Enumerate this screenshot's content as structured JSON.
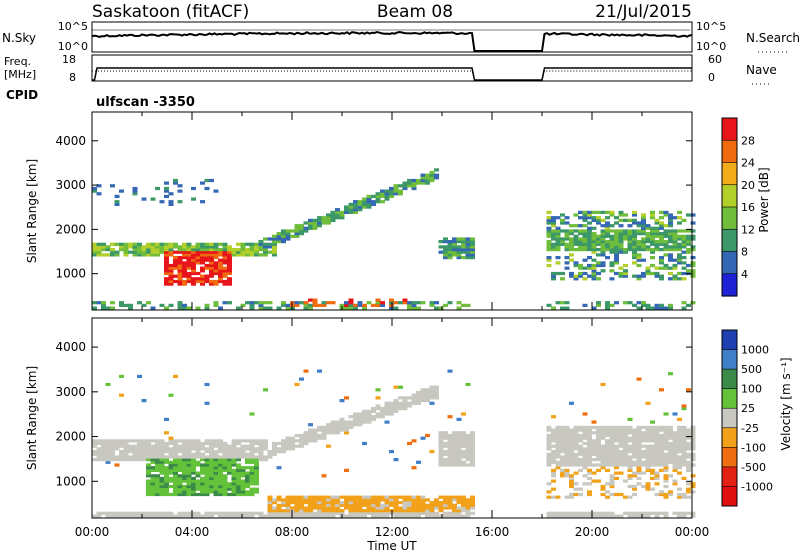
{
  "header": {
    "station": "Saskatoon (fitACF)",
    "beam": "Beam 08",
    "date": "21/Jul/2015"
  },
  "top_panels": {
    "nsky_label": "N.Sky",
    "nsky_ticks": [
      "10^5",
      "10^0"
    ],
    "nsearch_label": "N.Search",
    "nsearch_ticks": [
      "10^5",
      "10^0"
    ],
    "freq_label": "Freq.",
    "freq_unit": "[MHz]",
    "freq_ticks": [
      "18",
      "8"
    ],
    "nave_label": "Nave",
    "nave_ticks": [
      "60",
      "0"
    ],
    "cpid_label": "CPID",
    "cpid_value": "ulfscan -3350"
  },
  "chart_data": [
    {
      "type": "heatmap",
      "panel": "power",
      "ylabel": "Slant Range [km]",
      "yticks": [
        "4000",
        "3000",
        "2000",
        "1000"
      ],
      "ylim": [
        180,
        4650
      ],
      "xlim_hours": [
        0,
        24
      ],
      "data_gap_hours": [
        15.2,
        18.0
      ],
      "colorbar": {
        "label": "Power [dB]",
        "ticks": [
          "28",
          "24",
          "20",
          "16",
          "12",
          "8",
          "4"
        ],
        "colors": [
          "#e8141c",
          "#f06a10",
          "#f3ad1a",
          "#b3cf2a",
          "#6fbd3a",
          "#3c9868",
          "#3467b4",
          "#1e22d4"
        ]
      },
      "features": [
        {
          "label": "high-power spread echo",
          "t": [
            2.8,
            5.5
          ],
          "range_km": [
            700,
            1500
          ],
          "power_db": 30
        },
        {
          "label": "near-range band",
          "t": [
            0.0,
            7.2
          ],
          "range_km": [
            1350,
            1700
          ],
          "power_db": 14
        },
        {
          "label": "rising echo band",
          "t": [
            6.5,
            13.8
          ],
          "range_km": [
            1700,
            3300
          ],
          "power_db": 10
        },
        {
          "label": "post-gap echoes",
          "t": [
            18.0,
            24.0
          ],
          "range_km": [
            800,
            2400
          ],
          "power_db": 12
        }
      ]
    },
    {
      "type": "heatmap",
      "panel": "velocity",
      "ylabel": "Slant Range [km]",
      "yticks": [
        "4000",
        "3000",
        "2000",
        "1000"
      ],
      "ylim": [
        180,
        4650
      ],
      "xlim_hours": [
        0,
        24
      ],
      "data_gap_hours": [
        15.2,
        18.0
      ],
      "xticks": [
        "00:00",
        "04:00",
        "08:00",
        "12:00",
        "16:00",
        "20:00",
        "00:00"
      ],
      "xlabel": "Time UT",
      "colorbar": {
        "label": "Velocity [m s⁻¹]",
        "ticks": [
          "1000",
          "500",
          "100",
          "25",
          "-25",
          "-100",
          "-500",
          "-1000"
        ],
        "colors": [
          "#1f3fb0",
          "#3f7fc8",
          "#3c8a4a",
          "#63c23a",
          "#c8c8c0",
          "#f2a11a",
          "#ef6e12",
          "#e22014",
          "#e01010"
        ]
      },
      "features": [
        {
          "label": "ground scatter",
          "t": [
            0.0,
            15.2
          ],
          "range_km": [
            1400,
            2800
          ],
          "velocity": 0
        },
        {
          "label": "positive flow",
          "t": [
            2.0,
            6.5
          ],
          "range_km": [
            650,
            1600
          ],
          "velocity": 100
        },
        {
          "label": "negative flow",
          "t": [
            7.0,
            15.2
          ],
          "range_km": [
            250,
            700
          ],
          "velocity": -100
        },
        {
          "label": "post-gap ground scatter",
          "t": [
            18.0,
            24.0
          ],
          "range_km": [
            1300,
            2200
          ],
          "velocity": 0
        }
      ]
    }
  ]
}
